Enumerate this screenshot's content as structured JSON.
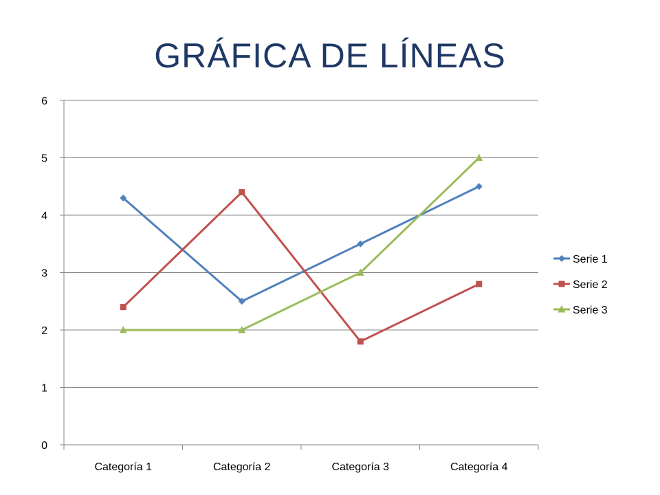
{
  "chart_data": {
    "type": "line",
    "title": "GRÁFICA DE LÍNEAS",
    "categories": [
      "Categoría 1",
      "Categoría 2",
      "Categoría 3",
      "Categoría 4"
    ],
    "series": [
      {
        "name": "Serie 1",
        "values": [
          4.3,
          2.5,
          3.5,
          4.5
        ],
        "color": "#4f81bd",
        "marker": "diamond"
      },
      {
        "name": "Serie 2",
        "values": [
          2.4,
          4.4,
          1.8,
          2.8
        ],
        "color": "#c0504d",
        "marker": "square"
      },
      {
        "name": "Serie 3",
        "values": [
          2,
          2,
          3,
          5
        ],
        "color": "#9bbb59",
        "marker": "triangle"
      }
    ],
    "ylim": [
      0,
      6
    ],
    "yticks": [
      "0",
      "1",
      "2",
      "3",
      "4",
      "5",
      "6"
    ],
    "grid": true,
    "legend_position": "right"
  }
}
